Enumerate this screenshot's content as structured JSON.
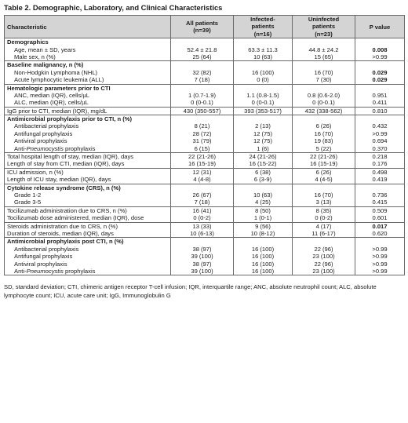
{
  "title": "Table 2. Demographic, Laboratory, and Clinical Characteristics",
  "headers": {
    "characteristic": "Characteristic",
    "all": [
      "All patients",
      "(n=39)"
    ],
    "infected": [
      "Infected-",
      "patients",
      "(n=16)"
    ],
    "uninfected": [
      "Uninfected",
      "patients",
      "(n=23)"
    ],
    "pvalue": "P value"
  },
  "groups": [
    {
      "section": "Demographics",
      "rows": [
        {
          "label": "Age, mean ± SD, years",
          "all": "52.4 ± 21.8",
          "inf": "63.3 ± 11.3",
          "uninf": "44.8 ± 24.2",
          "p": "0.008",
          "bold": true
        },
        {
          "label": "Male sex, n (%)",
          "all": "25 (64)",
          "inf": "10 (63)",
          "uninf": "15 (65)",
          "p": ">0.99"
        }
      ]
    },
    {
      "section": "Baseline malignancy, n (%)",
      "rows": [
        {
          "label": "Non-Hodgkin Lymphoma (NHL)",
          "all": "32 (82)",
          "inf": "16 (100)",
          "uninf": "16 (70)",
          "p": "0.029",
          "bold": true
        },
        {
          "label": "Acute lymphocytic leukemia (ALL)",
          "all": "7 (18)",
          "inf": "0 (0)",
          "uninf": "7 (30)",
          "p": "0.029",
          "bold": true
        }
      ]
    },
    {
      "section": "Hematologic parameters prior to CTI",
      "rows": [
        {
          "label": "ANC, median (IQR), cells/µL",
          "all": "1 (0.7-1.9)",
          "inf": "1.1 (0.8-1.5)",
          "uninf": "0.8 (0.6-2.0)",
          "p": "0.951"
        },
        {
          "label": "ALC, median (IQR), cells/µL",
          "all": "0 (0-0.1)",
          "inf": "0 (0-0.1)",
          "uninf": "0 (0-0.1)",
          "p": "0.411"
        }
      ]
    },
    {
      "section": "",
      "rows": [
        {
          "label": "IgG prior to CTI, median (IQR), mg/dL",
          "all": "430 (350-557)",
          "inf": "393 (353-517)",
          "uninf": "432 (338-562)",
          "p": "0.810"
        }
      ]
    },
    {
      "section": "Antimicrobial prophylaxis prior to CTI, n (%)",
      "rows": [
        {
          "label": "Antibacterial prophylaxis",
          "all": "8 (21)",
          "inf": "2 (13)",
          "uninf": "6 (26)",
          "p": "0.432"
        },
        {
          "label": "Antifungal prophylaxis",
          "all": "28 (72)",
          "inf": "12 (75)",
          "uninf": "16 (70)",
          "p": ">0.99"
        },
        {
          "label": "Antiviral prophylaxis",
          "all": "31 (79)",
          "inf": "12 (75)",
          "uninf": "19 (83)",
          "p": "0.694"
        },
        {
          "label": "Anti-Pneumocystis prophylaxis",
          "all": "6 (15)",
          "inf": "1 (6)",
          "uninf": "5 (22)",
          "p": "0.370",
          "italic": "Pneumocystis"
        }
      ]
    },
    {
      "section": "",
      "rows": [
        {
          "label": "Total hospital length of stay, median (IQR), days",
          "all": "22 (21-26)",
          "inf": "24 (21-26)",
          "uninf": "22 (21-26)",
          "p": "0.218"
        },
        {
          "label": "Length of stay from CTI, median (IQR), days",
          "all": "16 (15-19)",
          "inf": "16 (15-22)",
          "uninf": "16 (15-19)",
          "p": "0.176"
        }
      ]
    },
    {
      "section": "",
      "rows": [
        {
          "label": "ICU admission, n (%)",
          "all": "12 (31)",
          "inf": "6 (38)",
          "uninf": "6 (26)",
          "p": "0.498"
        },
        {
          "label": "Length of ICU stay, median (IQR), days",
          "all": "4 (4-8)",
          "inf": "6 (3-9)",
          "uninf": "4 (4-5)",
          "p": "0.419"
        }
      ]
    },
    {
      "section": "Cytokine release syndrome (CRS), n (%)",
      "rows": [
        {
          "label": "Grade 1-2",
          "all": "26 (67)",
          "inf": "10 (63)",
          "uninf": "16 (70)",
          "p": "0.736"
        },
        {
          "label": "Grade 3-5",
          "all": "7 (18)",
          "inf": "4 (25)",
          "uninf": "3 (13)",
          "p": "0.415"
        }
      ]
    },
    {
      "section": "",
      "rows": [
        {
          "label": "Tocilizumab administration due to CRS, n (%)",
          "all": "16 (41)",
          "inf": "8 (50)",
          "uninf": "8 (35)",
          "p": "0.509"
        },
        {
          "label": "Tocilizumab dose administered, median (IQR), dose",
          "all": "0 (0-2)",
          "inf": "1 (0-1)",
          "uninf": "0 (0-2)",
          "p": "0.601"
        }
      ]
    },
    {
      "section": "",
      "rows": [
        {
          "label": "Steroids administration due to CRS, n (%)",
          "all": "13 (33)",
          "inf": "9 (56)",
          "uninf": "4 (17)",
          "p": "0.017",
          "bold": true
        },
        {
          "label": "Duration of steroids, median (IQR), days",
          "all": "10 (6-13)",
          "inf": "10 (8-12)",
          "uninf": "11 (6-17)",
          "p": "0.620"
        }
      ]
    },
    {
      "section": "Antimicrobial prophylaxis post CTI, n (%)",
      "rows": [
        {
          "label": "Antibacterial prophylaxis",
          "all": "38 (97)",
          "inf": "16 (100)",
          "uninf": "22 (96)",
          "p": ">0.99"
        },
        {
          "label": "Antifungal prophylaxis",
          "all": "39 (100)",
          "inf": "16 (100)",
          "uninf": "23 (100)",
          "p": ">0.99"
        },
        {
          "label": "Antiviral prophylaxis",
          "all": "38 (97)",
          "inf": "16 (100)",
          "uninf": "22 (96)",
          "p": ">0.99"
        },
        {
          "label": "Anti-Pneumocystis prophylaxis",
          "all": "39 (100)",
          "inf": "16 (100)",
          "uninf": "23 (100)",
          "p": ">0.99",
          "italic": "Pneumocystis"
        }
      ]
    }
  ],
  "footnote": "SD, standard deviation; CTI, chimeric antigen receptor T-cell infusion; IQR, interquartile range; ANC, absolute neutrophil count; ALC, absolute lymphocyte count; ICU, acute care unit; IgG, Immunoglobulin G"
}
